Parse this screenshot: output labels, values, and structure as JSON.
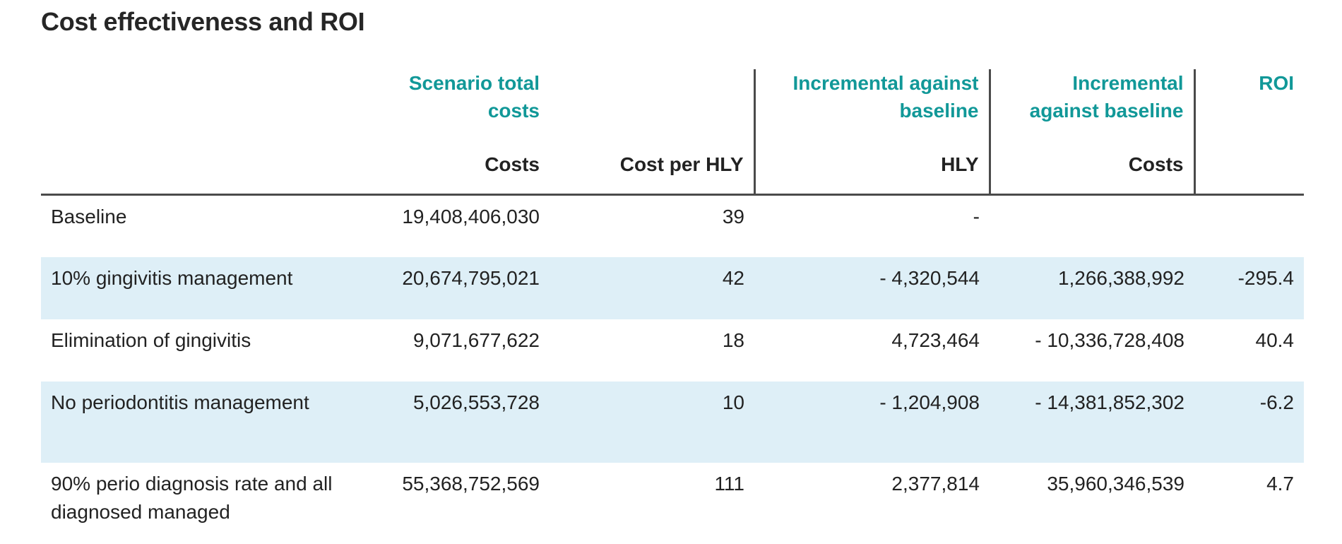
{
  "title": "Cost effectiveness and ROI",
  "colors": {
    "header_accent": "#119898",
    "row_shade": "#deeff7",
    "rule": "#4a4a4a"
  },
  "group_headers": {
    "scenario_total_costs": "Scenario total costs",
    "incremental_hly": "Incremental against baseline",
    "incremental_costs": "Incremental against baseline",
    "roi": "ROI"
  },
  "sub_headers": {
    "costs": "Costs",
    "cost_per_hly": "Cost per HLY",
    "hly": "HLY",
    "inc_costs": "Costs"
  },
  "rows": [
    {
      "label": "Baseline",
      "costs": "19,408,406,030",
      "cost_per_hly": "39",
      "inc_hly": "-",
      "inc_costs": "",
      "roi": ""
    },
    {
      "label": "10% gingivitis management",
      "costs": "20,674,795,021",
      "cost_per_hly": "42",
      "inc_hly": "- 4,320,544",
      "inc_costs": "1,266,388,992",
      "roi": "-295.4"
    },
    {
      "label": "Elimination of gingivitis",
      "costs": "9,071,677,622",
      "cost_per_hly": "18",
      "inc_hly": "4,723,464",
      "inc_costs": "- 10,336,728,408",
      "roi": "40.4"
    },
    {
      "label": "No periodontitis management",
      "costs": "5,026,553,728",
      "cost_per_hly": "10",
      "inc_hly": "- 1,204,908",
      "inc_costs": "- 14,381,852,302",
      "roi": "-6.2"
    },
    {
      "label": "90% perio diagnosis rate and all diagnosed managed",
      "costs": "55,368,752,569",
      "cost_per_hly": "111",
      "inc_hly": "2,377,814",
      "inc_costs": "35,960,346,539",
      "roi": "4.7"
    }
  ]
}
